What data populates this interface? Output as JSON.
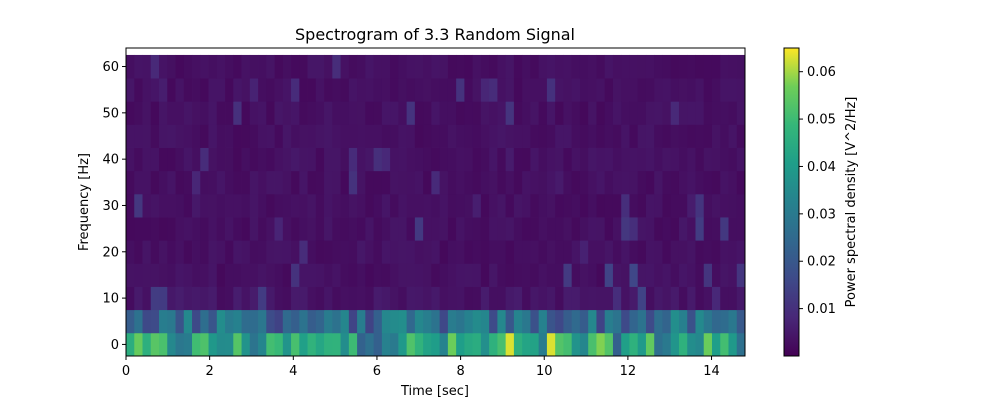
{
  "chart_data": {
    "type": "heatmap",
    "title": "Spectrogram of 3.3 Random Signal",
    "xlabel": "Time [sec]",
    "ylabel": "Frequency [Hz]",
    "colorbar_label": "Power spectral density [V^2/Hz]",
    "colormap": "viridis",
    "xlim": [
      0,
      14.8
    ],
    "ylim": [
      -2.5,
      64
    ],
    "x_ticks": [
      0,
      2,
      4,
      6,
      8,
      10,
      12,
      14
    ],
    "y_ticks": [
      0,
      10,
      20,
      30,
      40,
      50,
      60
    ],
    "colorbar_range": [
      0.0,
      0.065
    ],
    "colorbar_ticks": [
      0.01,
      0.02,
      0.03,
      0.04,
      0.05,
      0.06
    ],
    "time_bins": 75,
    "frequency_bins_hz": [
      0,
      5,
      10,
      15,
      20,
      25,
      30,
      35,
      40,
      45,
      50,
      55,
      60
    ],
    "band_summary": [
      {
        "frequency_hz": 0,
        "typical_psd": 0.04,
        "peak_psd": 0.063,
        "peak_times_sec": [
          9.1,
          10.2
        ]
      },
      {
        "frequency_hz": 5,
        "typical_psd": 0.025,
        "peak_psd": 0.031
      },
      {
        "frequency_hz": 10,
        "typical_psd": 0.004,
        "peak_psd": 0.015
      },
      {
        "frequency_hz": 15,
        "typical_psd": 0.003,
        "peak_psd": 0.016
      },
      {
        "frequency_hz": 20,
        "typical_psd": 0.003,
        "peak_psd": 0.01
      },
      {
        "frequency_hz": 25,
        "typical_psd": 0.003,
        "peak_psd": 0.014
      },
      {
        "frequency_hz": 30,
        "typical_psd": 0.003,
        "peak_psd": 0.012
      },
      {
        "frequency_hz": 35,
        "typical_psd": 0.003,
        "peak_psd": 0.011
      },
      {
        "frequency_hz": 40,
        "typical_psd": 0.003,
        "peak_psd": 0.01
      },
      {
        "frequency_hz": 45,
        "typical_psd": 0.003,
        "peak_psd": 0.012
      },
      {
        "frequency_hz": 50,
        "typical_psd": 0.003,
        "peak_psd": 0.013
      },
      {
        "frequency_hz": 55,
        "typical_psd": 0.003,
        "peak_psd": 0.011
      },
      {
        "frequency_hz": 60,
        "typical_psd": 0.003,
        "peak_psd": 0.01
      }
    ]
  }
}
